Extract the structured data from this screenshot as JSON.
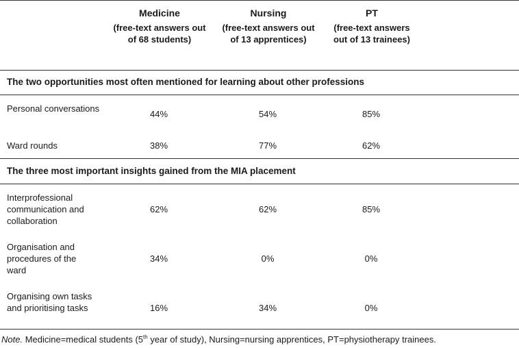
{
  "columns": [
    {
      "title": "Medicine",
      "subtitle": "(free-text answers out of 68 students)"
    },
    {
      "title": "Nursing",
      "subtitle": "(free-text answers out of 13 apprentices)"
    },
    {
      "title": "PT",
      "subtitle": "(free-text answers out of 13 trainees)"
    }
  ],
  "sections": [
    {
      "heading": "The two opportunities most often mentioned for learning about other professions",
      "rows": [
        {
          "label": "Personal conversations",
          "values": [
            "44%",
            "54%",
            "85%"
          ]
        },
        {
          "label": "Ward rounds",
          "values": [
            "38%",
            "77%",
            "62%"
          ]
        }
      ]
    },
    {
      "heading": "The three most important insights gained from the MIA placement",
      "rows": [
        {
          "label": "Interprofessional communication and collaboration",
          "values": [
            "62%",
            "62%",
            "85%"
          ]
        },
        {
          "label": "Organisation and procedures of the ward",
          "values": [
            "34%",
            "0%",
            "0%"
          ]
        },
        {
          "label": "Organising own tasks and prioritising tasks",
          "values": [
            "16%",
            "34%",
            "0%"
          ]
        }
      ]
    }
  ],
  "note": {
    "lead": "Note.",
    "part1": " Medicine=medical students (5",
    "sup": "th",
    "part2": " year of study), Nursing=nursing apprentices, PT=physiotherapy trainees."
  }
}
